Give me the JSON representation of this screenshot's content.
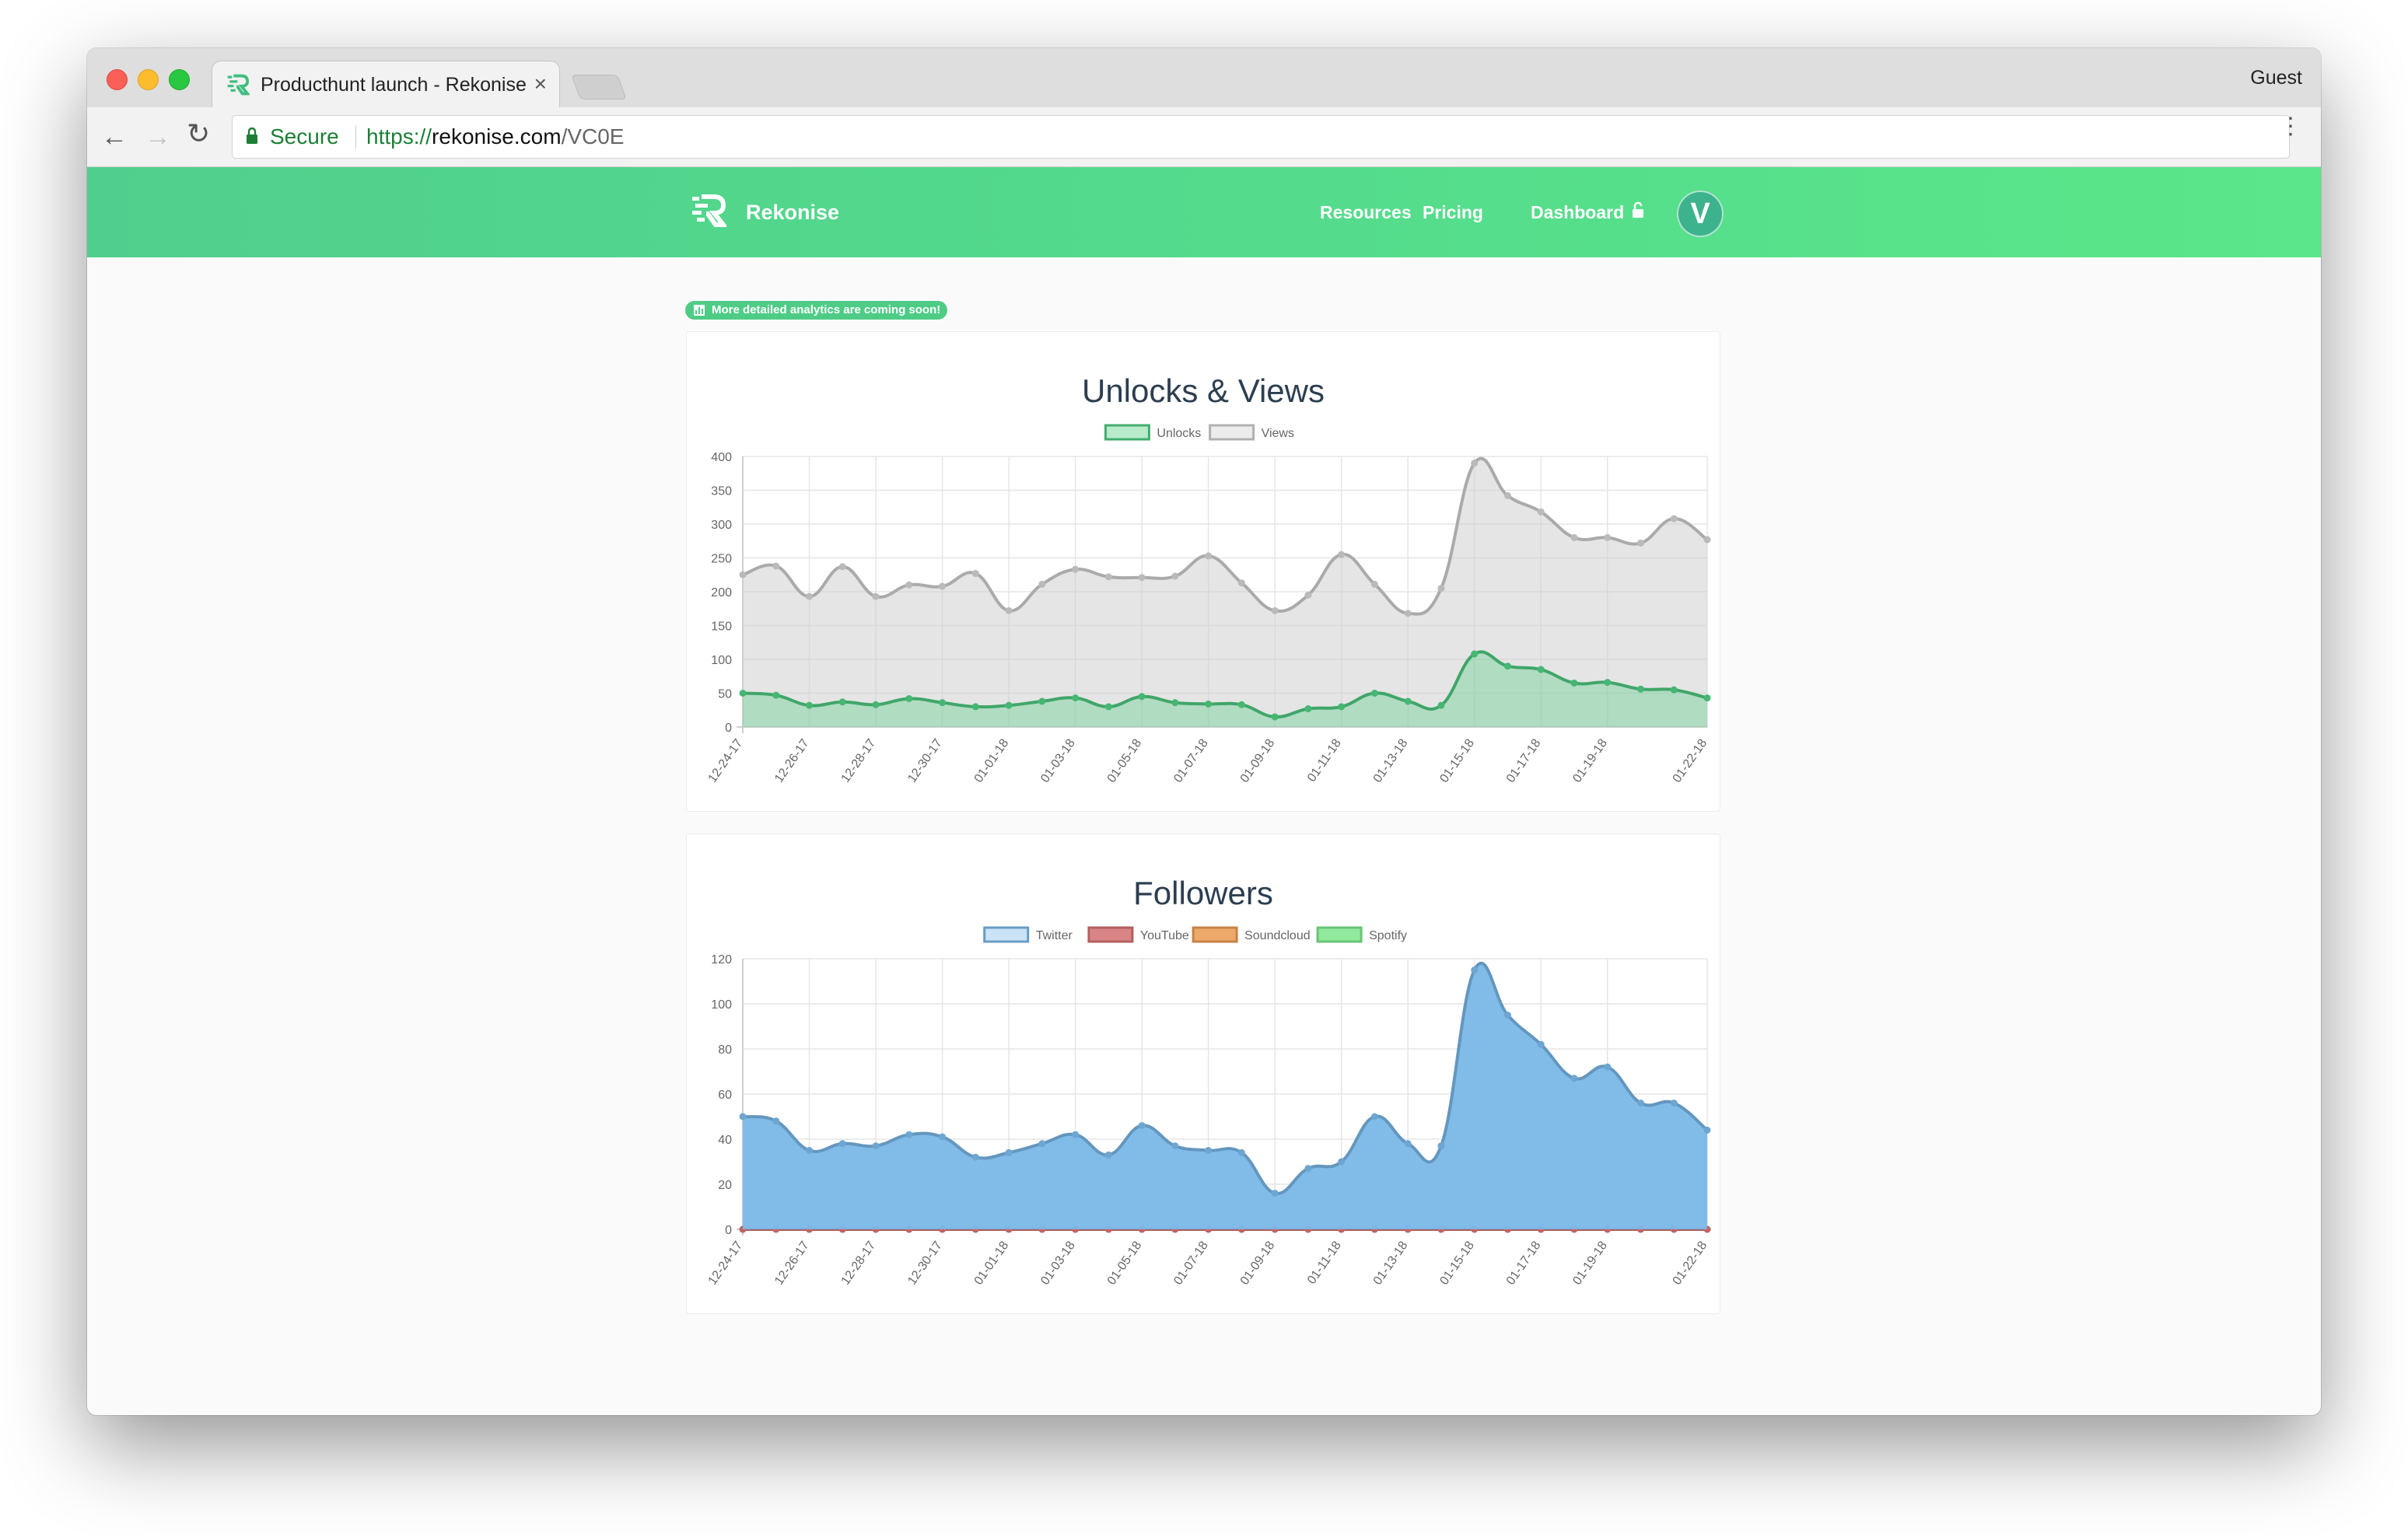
{
  "browser": {
    "tab_title": "Producthunt launch - Rekonise",
    "tab_close": "×",
    "profile": "Guest",
    "security_label": "Secure",
    "url_scheme": "https://",
    "url_host": "rekonise.com",
    "url_path": "/VC0E"
  },
  "site": {
    "brand": "Rekonise",
    "nav": [
      "Resources",
      "Pricing",
      "Dashboard"
    ],
    "avatar_letter": "V",
    "announcement": "More detailed analytics are coming soon!",
    "colors": {
      "brand_green": "#54dc8c",
      "avatar": "#3cb38d"
    }
  },
  "icons": {
    "tab_favicon": "rekonise-logo-icon",
    "lock": "padlock-icon",
    "logo": "rekonise-logo-icon",
    "nav_lock": "padlock-icon",
    "announcement": "bar-chart-icon"
  },
  "chart_data": [
    {
      "type": "area",
      "title": "Unlocks & Views",
      "x_tick_labels": [
        "12-24-17",
        "12-26-17",
        "12-28-17",
        "12-30-17",
        "01-01-18",
        "01-03-18",
        "01-05-18",
        "01-07-18",
        "01-09-18",
        "01-11-18",
        "01-13-18",
        "01-15-18",
        "01-17-18",
        "01-19-18",
        "01-22-18"
      ],
      "ylim": [
        0,
        400
      ],
      "y_ticks": [
        0,
        50,
        100,
        150,
        200,
        250,
        300,
        350,
        400
      ],
      "grid": true,
      "legend_position": "top",
      "series": [
        {
          "name": "Unlocks",
          "color": "#4ecb80",
          "values": [
            50,
            47,
            32,
            37,
            33,
            42,
            36,
            30,
            32,
            38,
            43,
            30,
            45,
            36,
            34,
            33,
            15,
            27,
            30,
            50,
            38,
            32,
            108,
            90,
            85,
            65,
            66,
            56,
            55,
            43
          ]
        },
        {
          "name": "Views",
          "color": "#cfcfcf",
          "values": [
            225,
            238,
            193,
            237,
            193,
            210,
            208,
            227,
            172,
            211,
            233,
            222,
            221,
            223,
            253,
            213,
            172,
            195,
            255,
            211,
            168,
            205,
            390,
            342,
            318,
            280,
            280,
            272,
            308,
            277
          ]
        }
      ]
    },
    {
      "type": "area",
      "title": "Followers",
      "x_tick_labels": [
        "12-24-17",
        "12-26-17",
        "12-28-17",
        "12-30-17",
        "01-01-18",
        "01-03-18",
        "01-05-18",
        "01-07-18",
        "01-09-18",
        "01-11-18",
        "01-13-18",
        "01-15-18",
        "01-17-18",
        "01-19-18",
        "01-22-18"
      ],
      "ylim": [
        0,
        120
      ],
      "y_ticks": [
        0,
        20,
        40,
        60,
        80,
        100,
        120
      ],
      "grid": true,
      "legend_position": "top",
      "series": [
        {
          "name": "Twitter",
          "color": "#7ab8e8",
          "values": [
            50,
            48,
            35,
            38,
            37,
            42,
            41,
            32,
            34,
            38,
            42,
            33,
            46,
            37,
            35,
            34,
            16,
            27,
            30,
            50,
            38,
            37,
            115,
            95,
            82,
            67,
            72,
            56,
            56,
            44
          ]
        },
        {
          "name": "YouTube",
          "color": "#d47070",
          "values": [
            0,
            0,
            0,
            0,
            0,
            0,
            0,
            0,
            0,
            0,
            0,
            0,
            0,
            0,
            0,
            0,
            0,
            0,
            0,
            0,
            0,
            0,
            0,
            0,
            0,
            0,
            0,
            0,
            0,
            0
          ]
        },
        {
          "name": "Soundcloud",
          "color": "#ea9a50",
          "values": [
            0,
            0,
            0,
            0,
            0,
            0,
            0,
            0,
            0,
            0,
            0,
            0,
            0,
            0,
            0,
            0,
            0,
            0,
            0,
            0,
            0,
            0,
            0,
            0,
            0,
            0,
            0,
            0,
            0,
            0
          ]
        },
        {
          "name": "Spotify",
          "color": "#7ee58c",
          "values": [
            0,
            0,
            0,
            0,
            0,
            0,
            0,
            0,
            0,
            0,
            0,
            0,
            0,
            0,
            0,
            0,
            0,
            0,
            0,
            0,
            0,
            0,
            0,
            0,
            0,
            0,
            0,
            0,
            0,
            0
          ]
        }
      ]
    }
  ]
}
